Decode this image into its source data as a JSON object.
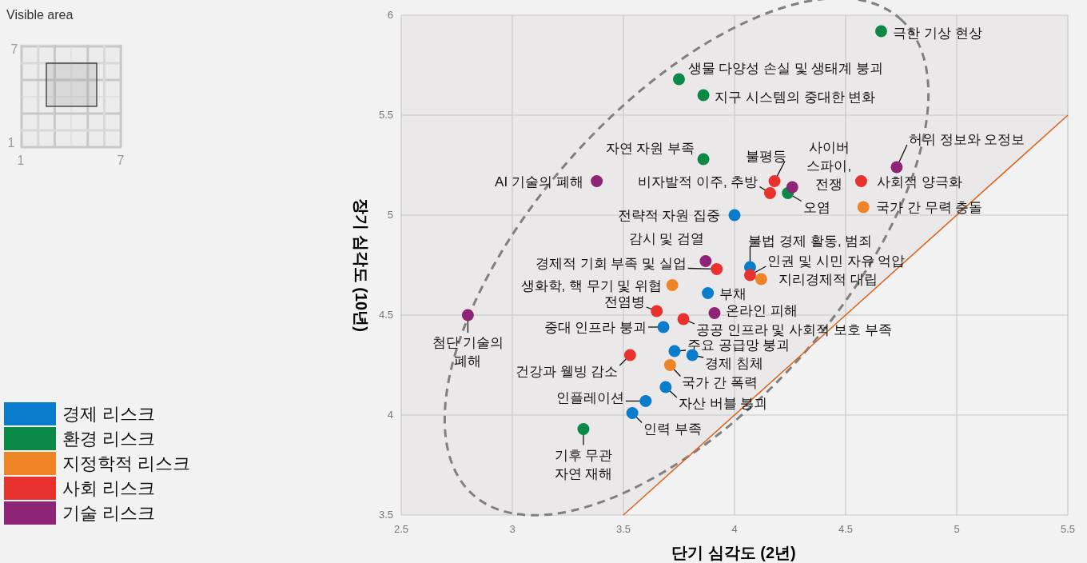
{
  "chart_data": {
    "type": "scatter",
    "xlabel": "단기 심각도 (2년)",
    "ylabel": "장기 심각도 (10년)",
    "xlim": [
      2.5,
      5.5
    ],
    "ylim": [
      3.5,
      6
    ],
    "xticks": [
      2.5,
      3,
      3.5,
      4,
      4.5,
      5,
      5.5
    ],
    "yticks": [
      3.5,
      4,
      4.5,
      5,
      5.5,
      6
    ],
    "grid": true,
    "legend": "bottom left",
    "marker": "circle",
    "series": [
      {
        "name": "경제 리스크",
        "color": "#0a7ccc",
        "x": [
          4.0,
          4.07,
          3.88,
          3.68,
          3.73,
          3.81,
          3.69,
          3.6,
          3.54
        ],
        "values": [
          5.0,
          4.74,
          4.61,
          4.44,
          4.32,
          4.3,
          4.14,
          4.07,
          4.01
        ]
      },
      {
        "name": "환경 리스크",
        "color": "#0b8a47",
        "x": [
          4.66,
          3.75,
          3.86,
          3.86,
          4.24,
          3.32
        ],
        "values": [
          5.92,
          5.68,
          5.6,
          5.28,
          5.11,
          3.93
        ]
      },
      {
        "name": "지정학적 리스크",
        "color": "#ee8426",
        "x": [
          4.58,
          4.12,
          3.72,
          3.71
        ],
        "values": [
          5.04,
          4.68,
          4.65,
          4.25
        ]
      },
      {
        "name": "사회 리스크",
        "color": "#e8322d",
        "x": [
          4.57,
          4.18,
          4.16,
          3.92,
          4.07,
          3.65,
          3.77,
          3.53
        ],
        "values": [
          5.17,
          5.17,
          5.11,
          4.73,
          4.7,
          4.52,
          4.48,
          4.3
        ]
      },
      {
        "name": "기술 리스크",
        "color": "#8e2475",
        "x": [
          4.73,
          3.38,
          4.26,
          3.87,
          3.91,
          2.8
        ],
        "values": [
          5.24,
          5.17,
          5.14,
          4.77,
          4.51,
          4.5
        ]
      },
      {
        "type": "line",
        "color": "#d9661f",
        "marker": "none",
        "x": [
          2.5,
          3.5,
          5.5
        ],
        "values": [
          null,
          3.5,
          5.5
        ],
        "lower": [
          3.5,
          3.5,
          5.5
        ],
        "upper": [
          6,
          6,
          6
        ]
      }
    ],
    "annotations": [
      "Visible area",
      "7",
      "1",
      "1",
      "7",
      {
        "text": "전략적 자원 집중",
        "x": 4.0,
        "y": 5.0
      },
      {
        "text": "불법 경제 활동, 범죄",
        "x": 4.07,
        "y": 4.74
      },
      {
        "text": "부채",
        "x": 3.88,
        "y": 4.61
      },
      {
        "text": "중대 인프라 붕괴",
        "x": 3.68,
        "y": 4.44
      },
      {
        "text": "주요 공급망 붕괴",
        "x": 3.73,
        "y": 4.32
      },
      {
        "text": "경제 침체",
        "x": 3.81,
        "y": 4.3
      },
      {
        "text": "자산 버블 붕괴",
        "x": 3.69,
        "y": 4.14
      },
      {
        "text": "인플레이션",
        "x": 3.6,
        "y": 4.07
      },
      {
        "text": "인력 부족",
        "x": 3.54,
        "y": 4.01
      },
      {
        "text": "극한 기상 현상",
        "x": 4.66,
        "y": 5.92
      },
      {
        "text": "생물 다양성 손실 및 생태계 붕괴",
        "x": 3.75,
        "y": 5.68
      },
      {
        "text": "지구 시스템의 중대한 변화",
        "x": 3.86,
        "y": 5.6
      },
      {
        "text": "자연 자원 부족",
        "x": 3.86,
        "y": 5.28
      },
      {
        "text": "오염",
        "x": 4.24,
        "y": 5.11
      },
      {
        "text": "기후 무관 자연 재해",
        "x": 3.32,
        "y": 3.93
      },
      {
        "text": "국가 간 무력 충돌",
        "x": 4.58,
        "y": 5.04
      },
      {
        "text": "지리경제적 대립",
        "x": 4.12,
        "y": 4.68
      },
      {
        "text": "생화학, 핵 무기 및 위협",
        "x": 3.72,
        "y": 4.65
      },
      {
        "text": "국가 간 폭력",
        "x": 3.71,
        "y": 4.25
      },
      {
        "text": "사회적 양극화",
        "x": 4.57,
        "y": 5.17
      },
      {
        "text": "불평등",
        "x": 4.18,
        "y": 5.17
      },
      {
        "text": "비자발적 이주, 추방",
        "x": 4.16,
        "y": 5.11
      },
      {
        "text": "경제적 기회 부족 및 실업",
        "x": 3.92,
        "y": 4.73
      },
      {
        "text": "인권 및 시민 자유 억압",
        "x": 4.07,
        "y": 4.7
      },
      {
        "text": "전염병",
        "x": 3.65,
        "y": 4.52
      },
      {
        "text": "공공 인프라 및 사회적 보호 부족",
        "x": 3.77,
        "y": 4.48
      },
      {
        "text": "건강과 웰빙 감소",
        "x": 3.53,
        "y": 4.3
      },
      {
        "text": "허위 정보와 오정보",
        "x": 4.73,
        "y": 5.24
      },
      {
        "text": "AI 기술의 폐해",
        "x": 3.38,
        "y": 5.17
      },
      {
        "text": "사이버 스파이, 전쟁",
        "x": 4.26,
        "y": 5.14
      },
      {
        "text": "감시 및 검열",
        "x": 3.87,
        "y": 4.77
      },
      {
        "text": "온라인 피해",
        "x": 3.91,
        "y": 4.51
      },
      {
        "text": "첨단 기술의 폐해",
        "x": 2.8,
        "y": 4.5
      }
    ]
  }
}
